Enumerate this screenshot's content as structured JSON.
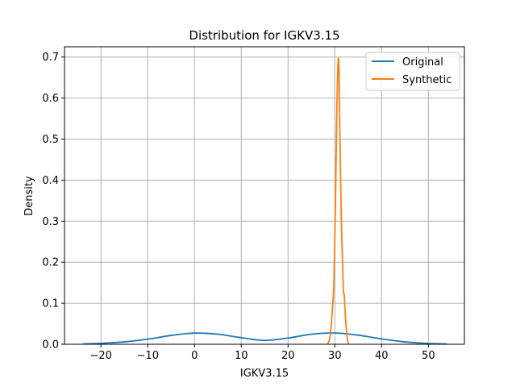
{
  "chart_data": {
    "type": "line",
    "title": "Distribution for IGKV3.15",
    "xlabel": "IGKV3.15",
    "ylabel": "Density",
    "xlim": [
      -27.8,
      57.7
    ],
    "ylim": [
      0,
      0.725
    ],
    "xticks": [
      -20,
      -10,
      0,
      10,
      20,
      30,
      40,
      50
    ],
    "xtick_labels": [
      "−20",
      "−10",
      "0",
      "10",
      "20",
      "30",
      "40",
      "50"
    ],
    "yticks": [
      0.0,
      0.1,
      0.2,
      0.3,
      0.4,
      0.5,
      0.6,
      0.7
    ],
    "ytick_labels": [
      "0.0",
      "0.1",
      "0.2",
      "0.3",
      "0.4",
      "0.5",
      "0.6",
      "0.7"
    ],
    "grid": true,
    "legend": {
      "position": "top-right"
    },
    "series": [
      {
        "name": "Original",
        "color": "#1f77b4",
        "x": [
          -23.9,
          -20,
          -15,
          -10,
          -5,
          0,
          5,
          10,
          15,
          20,
          25,
          30,
          35,
          40,
          45,
          50,
          53.9
        ],
        "y": [
          0.0008,
          0.0022,
          0.0058,
          0.0125,
          0.0215,
          0.0272,
          0.0245,
          0.016,
          0.0095,
          0.0152,
          0.0245,
          0.0275,
          0.0222,
          0.013,
          0.0058,
          0.0018,
          0.0006
        ]
      },
      {
        "name": "Synthetic",
        "color": "#ff7f0e",
        "x": [
          28.4,
          29.0,
          29.5,
          29.8,
          30.1,
          30.4,
          30.7,
          30.9,
          31.1,
          31.4,
          31.8,
          32.0,
          32.3,
          32.6,
          32.9
        ],
        "y": [
          0.0,
          0.02,
          0.09,
          0.15,
          0.32,
          0.55,
          0.69,
          0.66,
          0.5,
          0.3,
          0.14,
          0.12,
          0.06,
          0.02,
          0.0
        ]
      }
    ]
  }
}
